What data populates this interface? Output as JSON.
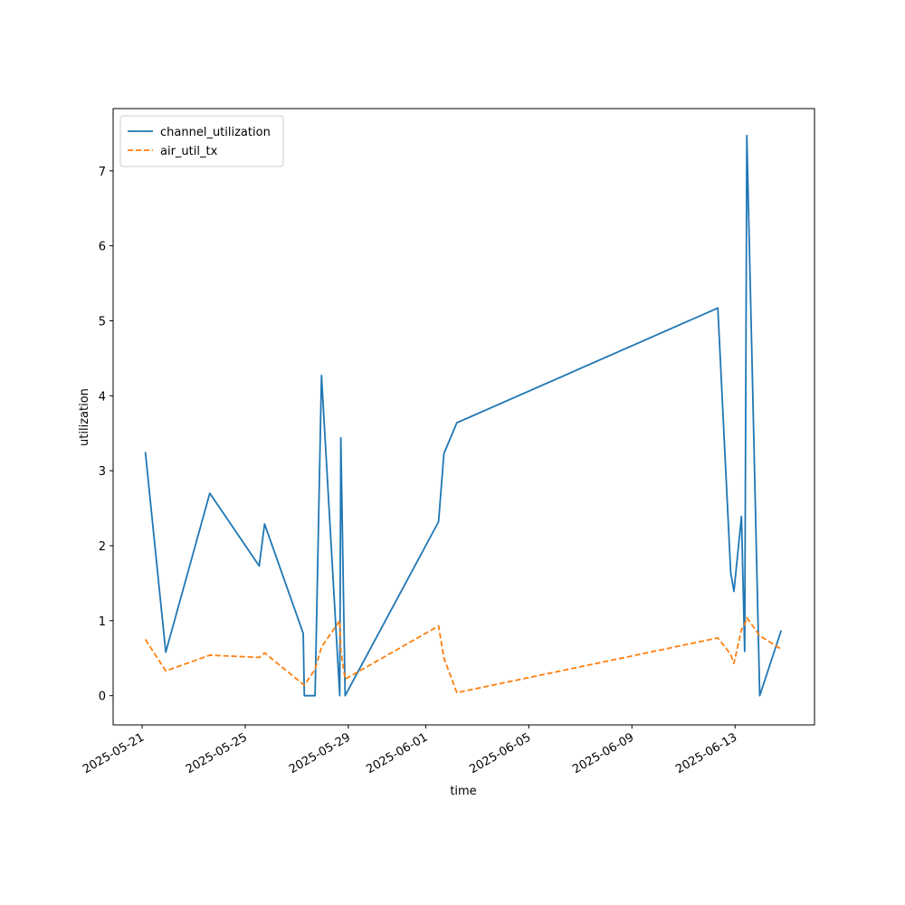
{
  "chart_data": {
    "type": "line",
    "x_label": "time",
    "y_label": "utilization",
    "x": [
      "2025-05-21T03:00",
      "2025-05-21T22:00",
      "2025-05-23T15:00",
      "2025-05-25T13:00",
      "2025-05-25T18:00",
      "2025-05-27T06:00",
      "2025-05-27T07:00",
      "2025-05-27T17:00",
      "2025-05-27T23:00",
      "2025-05-28T16:00",
      "2025-05-28T17:00",
      "2025-05-28T21:00",
      "2025-06-01T12:00",
      "2025-06-01T17:00",
      "2025-06-02T05:00",
      "2025-06-12T08:00",
      "2025-06-12T20:00",
      "2025-06-12T23:00",
      "2025-06-13T06:00",
      "2025-06-13T09:00",
      "2025-06-13T11:00",
      "2025-06-13T23:00",
      "2025-06-14T19:00"
    ],
    "series": [
      {
        "name": "channel_utilization",
        "color": "#1f77b4",
        "dash": false,
        "values": [
          3.25,
          0.58,
          2.7,
          1.73,
          2.29,
          0.83,
          0,
          0,
          4.27,
          0,
          3.44,
          0,
          2.32,
          3.23,
          3.64,
          5.17,
          1.64,
          1.39,
          2.39,
          0.59,
          7.47,
          0,
          0.87
        ]
      },
      {
        "name": "air_util_tx",
        "color": "#ff7f0e",
        "dash": true,
        "values": [
          0.75,
          0.33,
          0.54,
          0.51,
          0.57,
          0.15,
          0.14,
          0.35,
          0.65,
          1.0,
          0.6,
          0.22,
          0.93,
          0.5,
          0.04,
          0.77,
          0.55,
          0.43,
          0.88,
          0.95,
          1.04,
          0.8,
          0.62
        ]
      }
    ],
    "xlim": [
      "2025-05-19T21:00",
      "2025-06-16T02:00"
    ],
    "xticks": [
      "2025-05-21",
      "2025-05-25",
      "2025-05-29",
      "2025-06-01",
      "2025-06-05",
      "2025-06-09",
      "2025-06-13"
    ],
    "ylim": [
      -0.39,
      7.83
    ],
    "yticks": [
      0,
      1,
      2,
      3,
      4,
      5,
      6,
      7
    ],
    "legend": "upper-left"
  }
}
